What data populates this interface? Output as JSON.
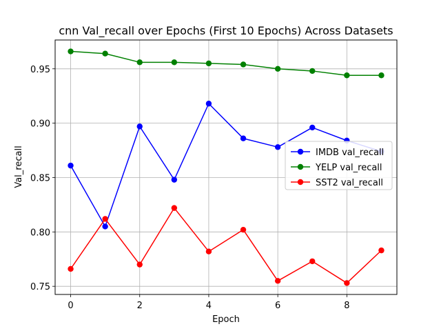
{
  "chart_data": {
    "type": "line",
    "title": "cnn Val_recall over Epochs (First 10 Epochs) Across Datasets",
    "xlabel": "Epoch",
    "ylabel": "Val_recall",
    "x": [
      0,
      1,
      2,
      3,
      4,
      5,
      6,
      7,
      8,
      9
    ],
    "xlim": [
      -0.45,
      9.45
    ],
    "ylim": [
      0.7425,
      0.9765
    ],
    "xticks": [
      0,
      2,
      4,
      6,
      8
    ],
    "yticks": [
      0.75,
      0.8,
      0.85,
      0.9,
      0.95
    ],
    "xtick_labels": [
      "0",
      "2",
      "4",
      "6",
      "8"
    ],
    "ytick_labels": [
      "0.75",
      "0.80",
      "0.85",
      "0.90",
      "0.95"
    ],
    "grid": true,
    "legend_position": "center-right",
    "series": [
      {
        "name": "IMDB val_recall",
        "color": "#0000ff",
        "values": [
          0.861,
          0.805,
          0.897,
          0.848,
          0.918,
          0.886,
          0.878,
          0.896,
          0.884,
          0.874
        ]
      },
      {
        "name": "YELP val_recall",
        "color": "#008000",
        "values": [
          0.966,
          0.964,
          0.956,
          0.956,
          0.955,
          0.954,
          0.95,
          0.948,
          0.944,
          0.944
        ]
      },
      {
        "name": "SST2 val_recall",
        "color": "#ff0000",
        "values": [
          0.766,
          0.812,
          0.77,
          0.822,
          0.782,
          0.802,
          0.755,
          0.773,
          0.753,
          0.783
        ]
      }
    ]
  }
}
